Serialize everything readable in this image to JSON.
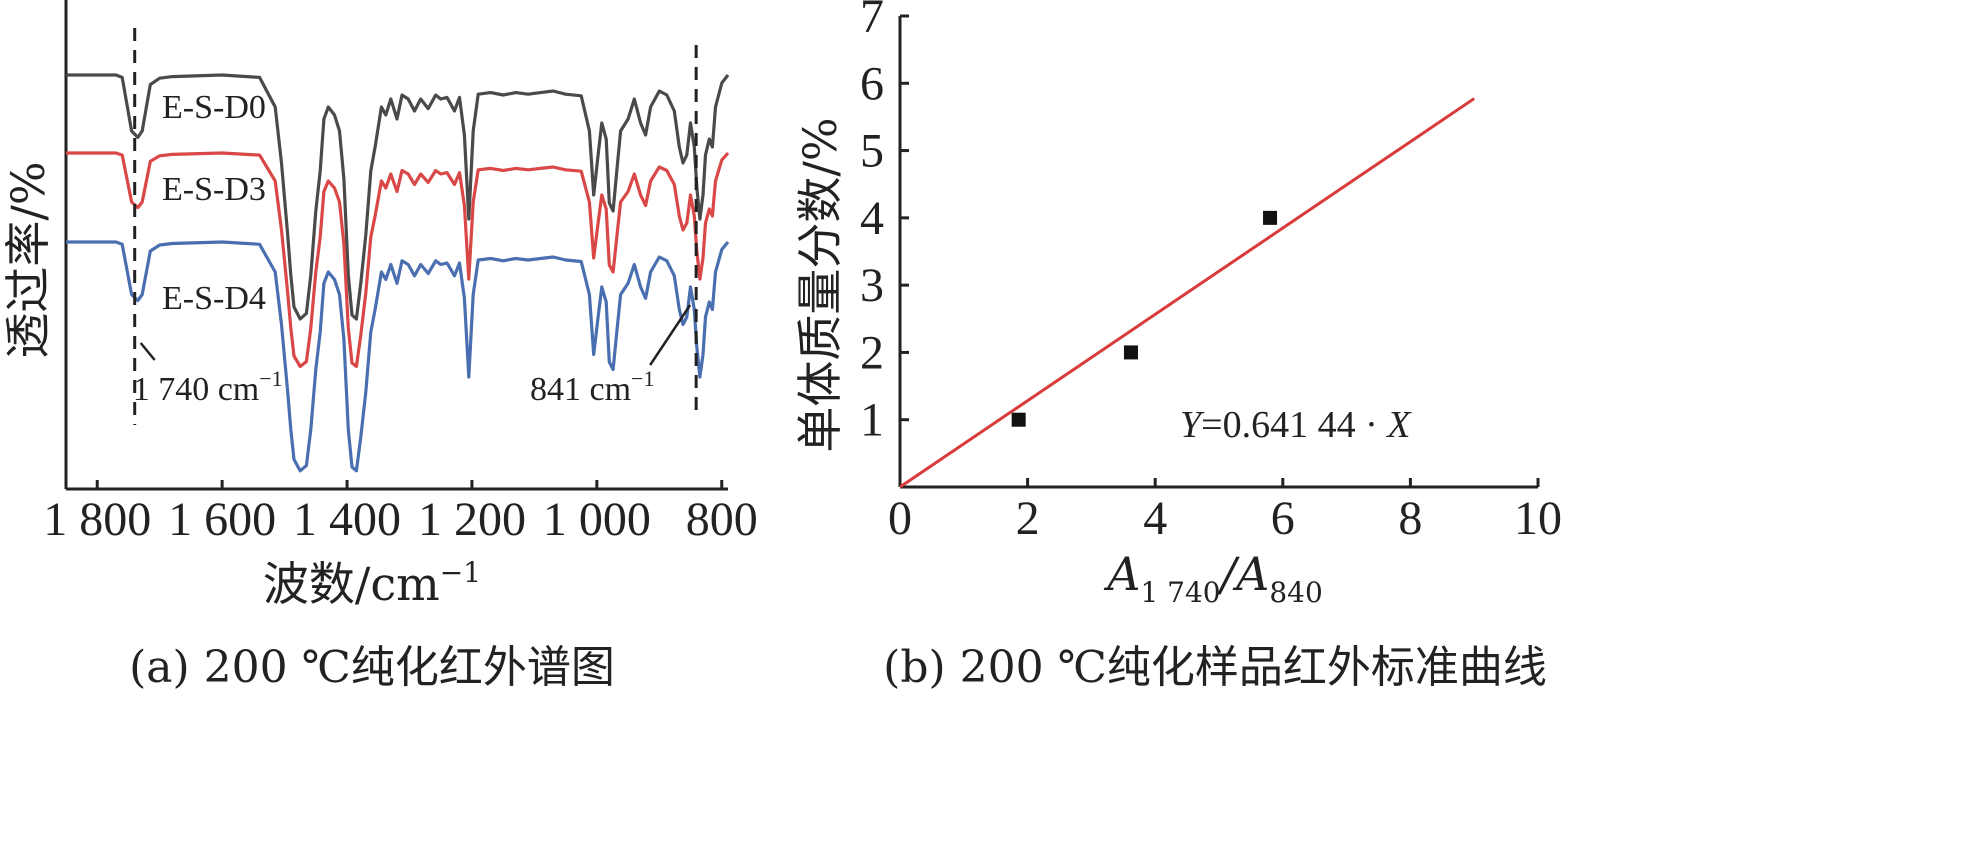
{
  "chart_data": [
    {
      "type": "line",
      "caption": "(a) 200 ℃纯化红外谱图",
      "xlabel": "波数/cm",
      "xlabel_sup": "−1",
      "ylabel": "透过率/%",
      "x_reversed": true,
      "xlim": [
        1850,
        790
      ],
      "x_ticks": [
        {
          "value": 1800,
          "label": "1 800"
        },
        {
          "value": 1600,
          "label": "1 600"
        },
        {
          "value": 1400,
          "label": "1 400"
        },
        {
          "value": 1200,
          "label": "1 200"
        },
        {
          "value": 1000,
          "label": "1 000"
        },
        {
          "value": 800,
          "label": "800"
        }
      ],
      "colors": {
        "E-S-D0": "#4a4a4a",
        "E-S-D3": "#d94747",
        "E-S-D4": "#4a6fb0"
      },
      "series": [
        {
          "name": "E-S-D0"
        },
        {
          "name": "E-S-D3"
        },
        {
          "name": "E-S-D4"
        }
      ],
      "annotations": [
        {
          "x": 1740,
          "text": "1 740 cm",
          "sup": "−1"
        },
        {
          "x": 841,
          "text": "841 cm",
          "sup": "−1"
        }
      ]
    },
    {
      "type": "scatter",
      "caption": "(b) 200 ℃纯化样品红外标准曲线",
      "xlabel_main": "A",
      "xlabel_sub1": "1 740",
      "xlabel_mid": "/A",
      "xlabel_sub2": "840",
      "ylabel": "单体质量分数/%",
      "xlim": [
        0,
        10
      ],
      "ylim": [
        0,
        7
      ],
      "x_ticks": [
        0,
        2,
        4,
        6,
        8,
        10
      ],
      "y_ticks": [
        1,
        2,
        3,
        4,
        5,
        6,
        7
      ],
      "points": [
        {
          "x": 1.86,
          "y": 1.0
        },
        {
          "x": 3.62,
          "y": 2.0
        },
        {
          "x": 5.8,
          "y": 4.0
        }
      ],
      "fit": {
        "slope": 0.64144,
        "x_range": [
          0,
          9
        ],
        "color": "#d93a3a"
      },
      "equation": {
        "y": "Y",
        "mid": "=0.641 44 · ",
        "x": "X"
      }
    }
  ]
}
